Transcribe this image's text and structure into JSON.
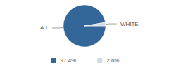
{
  "chart_data": {
    "type": "pie",
    "categories": [
      "A.I.",
      "WHITE"
    ],
    "values": [
      97.4,
      2.6
    ],
    "value_labels": [
      "97.4%",
      "2.6%"
    ],
    "colors": [
      "#336699",
      "#cfdbe6"
    ],
    "legend": "bottom"
  }
}
